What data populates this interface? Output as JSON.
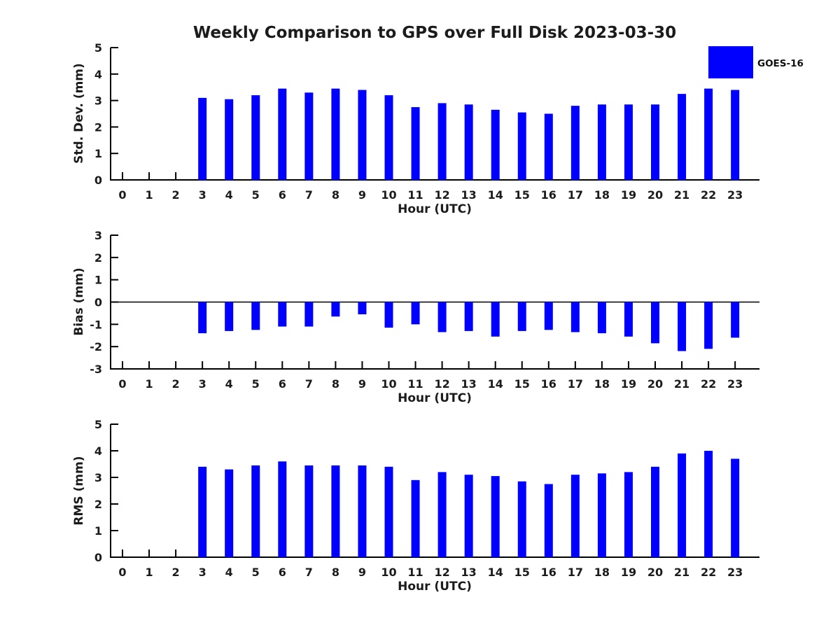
{
  "title": "Weekly Comparison to GPS over Full Disk 2023-03-30",
  "legend": {
    "label": "GOES-16",
    "swatch_color": "#0000ff",
    "position": "top-right"
  },
  "colors": {
    "bar": "#0000ff",
    "axis": "#000000",
    "text": "#1b1b1b",
    "background": "#ffffff"
  },
  "chart_data": [
    {
      "type": "bar",
      "title": "",
      "xlabel": "Hour (UTC)",
      "ylabel": "Std. Dev. (mm)",
      "ylim": [
        0,
        5
      ],
      "yticks": [
        0,
        1,
        2,
        3,
        4,
        5
      ],
      "grid": false,
      "legend_position": "top-right",
      "categories": [
        "0",
        "1",
        "2",
        "3",
        "4",
        "5",
        "6",
        "7",
        "8",
        "9",
        "10",
        "11",
        "12",
        "13",
        "14",
        "15",
        "16",
        "17",
        "18",
        "19",
        "20",
        "21",
        "22",
        "23"
      ],
      "series": [
        {
          "name": "GOES-16",
          "values": [
            0,
            0,
            0,
            3.1,
            3.05,
            3.2,
            3.45,
            3.3,
            3.45,
            3.4,
            3.2,
            2.75,
            2.9,
            2.85,
            2.65,
            2.55,
            2.5,
            2.8,
            2.85,
            2.85,
            2.85,
            3.25,
            3.45,
            3.4
          ]
        }
      ]
    },
    {
      "type": "bar",
      "title": "",
      "xlabel": "Hour (UTC)",
      "ylabel": "Bias (mm)",
      "ylim": [
        -3,
        3
      ],
      "yticks": [
        -3,
        -2,
        -1,
        0,
        1,
        2,
        3
      ],
      "grid": false,
      "zero_line": true,
      "categories": [
        "0",
        "1",
        "2",
        "3",
        "4",
        "5",
        "6",
        "7",
        "8",
        "9",
        "10",
        "11",
        "12",
        "13",
        "14",
        "15",
        "16",
        "17",
        "18",
        "19",
        "20",
        "21",
        "22",
        "23"
      ],
      "series": [
        {
          "name": "GOES-16",
          "values": [
            0,
            0,
            0,
            -1.4,
            -1.3,
            -1.25,
            -1.1,
            -1.1,
            -0.65,
            -0.55,
            -1.15,
            -1.0,
            -1.35,
            -1.3,
            -1.55,
            -1.3,
            -1.25,
            -1.35,
            -1.4,
            -1.55,
            -1.85,
            -2.2,
            -2.1,
            -1.6
          ]
        }
      ]
    },
    {
      "type": "bar",
      "title": "",
      "xlabel": "Hour (UTC)",
      "ylabel": "RMS (mm)",
      "ylim": [
        0,
        5
      ],
      "yticks": [
        0,
        1,
        2,
        3,
        4,
        5
      ],
      "grid": false,
      "categories": [
        "0",
        "1",
        "2",
        "3",
        "4",
        "5",
        "6",
        "7",
        "8",
        "9",
        "10",
        "11",
        "12",
        "13",
        "14",
        "15",
        "16",
        "17",
        "18",
        "19",
        "20",
        "21",
        "22",
        "23"
      ],
      "series": [
        {
          "name": "GOES-16",
          "values": [
            0,
            0,
            0,
            3.4,
            3.3,
            3.45,
            3.6,
            3.45,
            3.45,
            3.45,
            3.4,
            2.9,
            3.2,
            3.1,
            3.05,
            2.85,
            2.75,
            3.1,
            3.15,
            3.2,
            3.4,
            3.9,
            4.0,
            3.7
          ]
        }
      ]
    }
  ]
}
